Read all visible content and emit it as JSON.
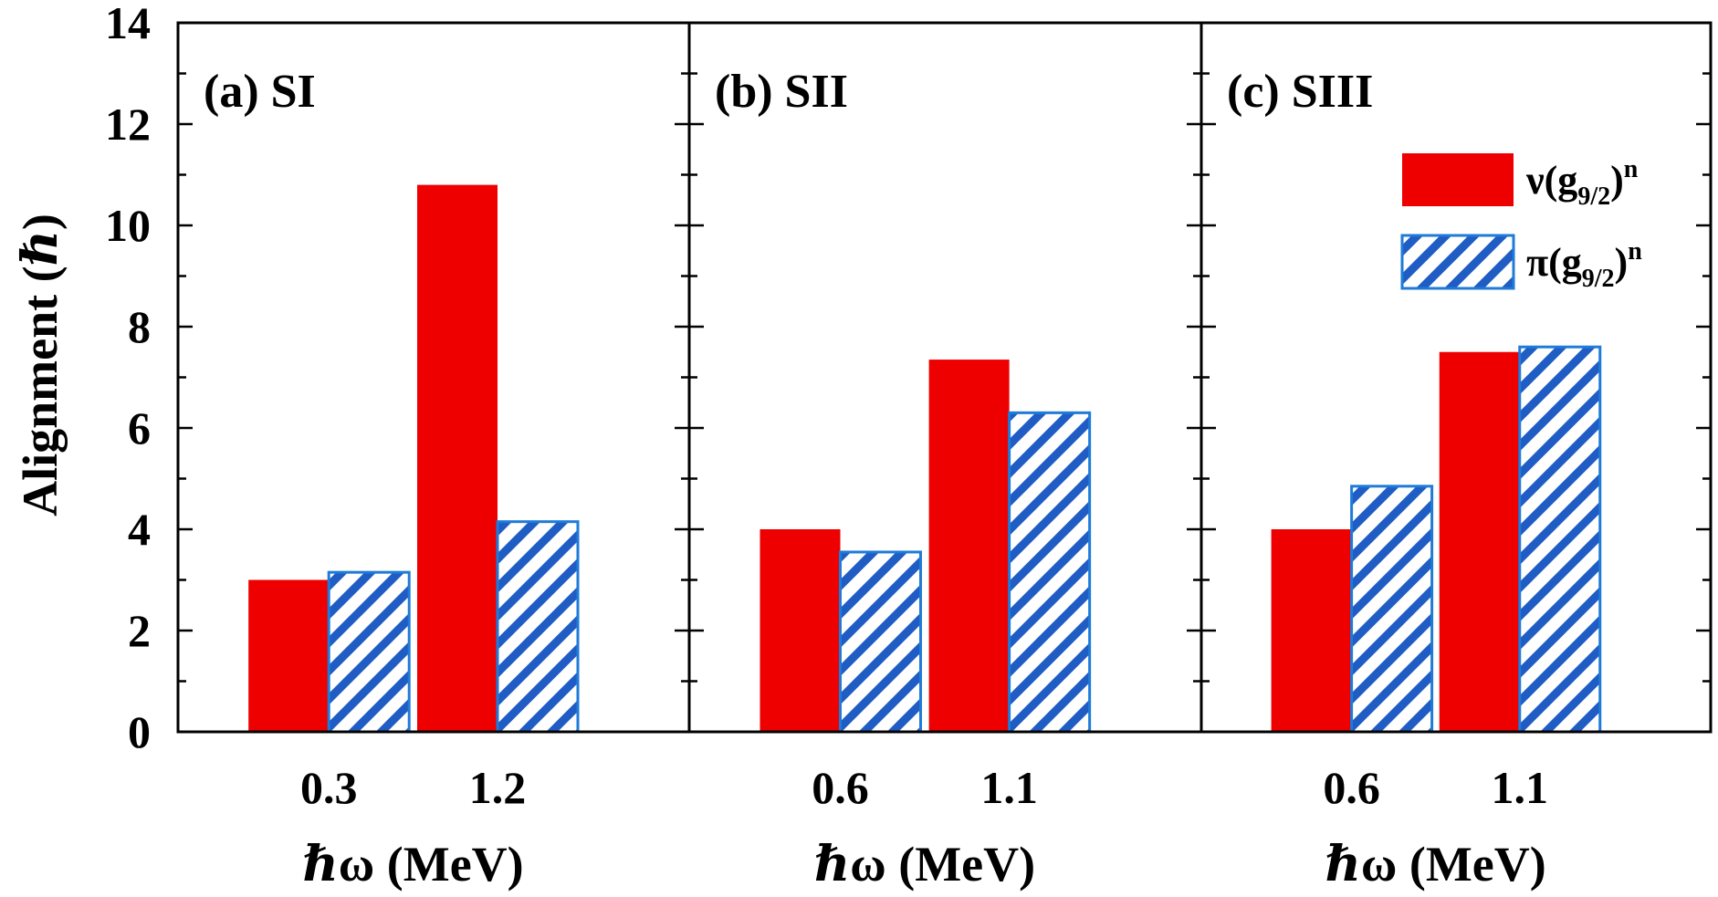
{
  "chart_data": {
    "type": "bar",
    "ylabel": "Alignment (ℏ)",
    "ylim": [
      0,
      14
    ],
    "yticks": [
      "0",
      "2",
      "4",
      "6",
      "8",
      "10",
      "12",
      "14"
    ],
    "legend": {
      "placement": "top-right of panel (c)",
      "entries": [
        {
          "series_key": "nu",
          "prefix": "ν(g",
          "sub": "9/2",
          "close": ")",
          "sup": "n",
          "color": "#ee0000"
        },
        {
          "series_key": "pi",
          "prefix": "π(g",
          "sub": "9/2",
          "close": ")",
          "sup": "n",
          "color": "#1e7bd8",
          "hatch": true
        }
      ]
    },
    "panels": [
      {
        "label": "(a) SI",
        "xlabel": "ℏω (MeV)",
        "categories": [
          "0.3",
          "1.2"
        ],
        "series": [
          {
            "key": "nu",
            "values": [
              3.0,
              10.8
            ]
          },
          {
            "key": "pi",
            "values": [
              3.15,
              4.15
            ]
          }
        ]
      },
      {
        "label": "(b) SII",
        "xlabel": "ℏω (MeV)",
        "categories": [
          "0.6",
          "1.1"
        ],
        "series": [
          {
            "key": "nu",
            "values": [
              4.0,
              7.35
            ]
          },
          {
            "key": "pi",
            "values": [
              3.55,
              6.3
            ]
          }
        ]
      },
      {
        "label": "(c) SIII",
        "xlabel": "ℏω (MeV)",
        "categories": [
          "0.6",
          "1.1"
        ],
        "series": [
          {
            "key": "nu",
            "values": [
              4.0,
              7.5
            ]
          },
          {
            "key": "pi",
            "values": [
              4.85,
              7.6
            ]
          }
        ]
      }
    ]
  }
}
